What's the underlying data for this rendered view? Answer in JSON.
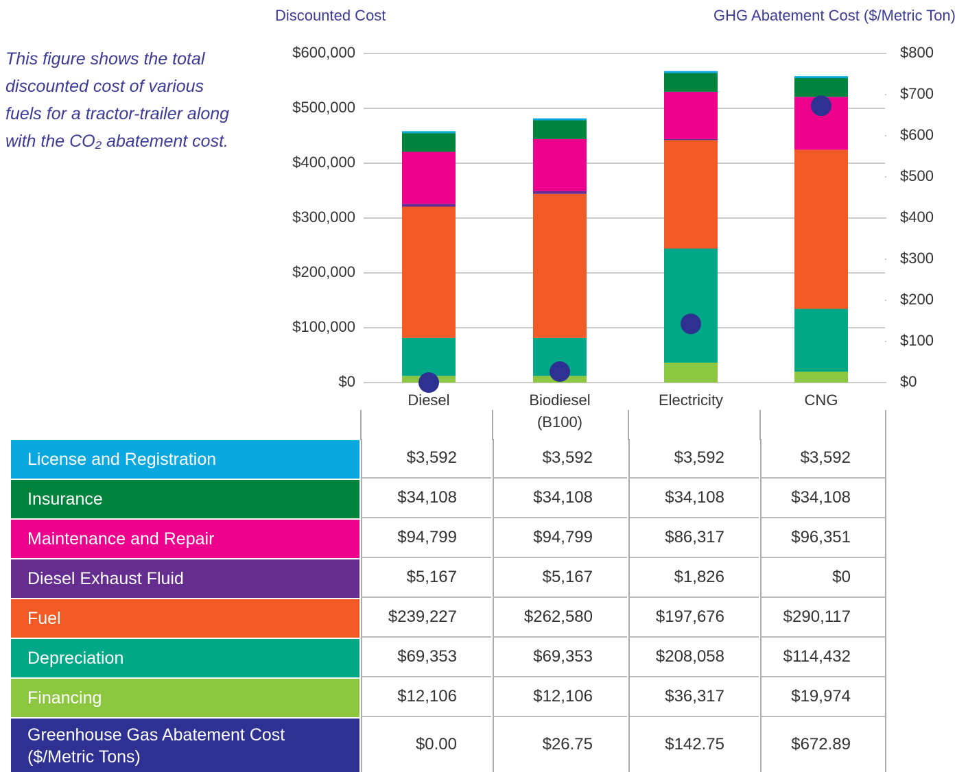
{
  "chart_data": {
    "type": "bar",
    "stacked": true,
    "annotation": "This figure shows the total discounted cost of various fuels for a tractor-trailer along with the CO₂ abatement cost.",
    "y_label": "Discounted Cost",
    "y2_label": "GHG Abatement Cost ($/Metric Ton)",
    "categories": [
      "Diesel",
      "Biodiesel (B100)",
      "Electricity",
      "CNG"
    ],
    "ylim": [
      0,
      600000
    ],
    "yticks": [
      {
        "value": 0,
        "label": "$0"
      },
      {
        "value": 100000,
        "label": "$100,000"
      },
      {
        "value": 200000,
        "label": "$200,000"
      },
      {
        "value": 300000,
        "label": "$300,000"
      },
      {
        "value": 400000,
        "label": "$400,000"
      },
      {
        "value": 500000,
        "label": "$500,000"
      },
      {
        "value": 600000,
        "label": "$600,000"
      }
    ],
    "y2lim": [
      0,
      800
    ],
    "y2ticks": [
      {
        "value": 0,
        "label": "$0"
      },
      {
        "value": 100,
        "label": "$100"
      },
      {
        "value": 200,
        "label": "$200"
      },
      {
        "value": 300,
        "label": "$300"
      },
      {
        "value": 400,
        "label": "$400"
      },
      {
        "value": 500,
        "label": "$500"
      },
      {
        "value": 600,
        "label": "$600"
      },
      {
        "value": 700,
        "label": "$700"
      },
      {
        "value": 800,
        "label": "$800"
      }
    ],
    "grid": true,
    "series": [
      {
        "name": "License and Registration",
        "color": "#0aa8e0",
        "values": [
          3592,
          3592,
          3592,
          3592
        ],
        "value_labels": [
          "$3,592",
          "$3,592",
          "$3,592",
          "$3,592"
        ]
      },
      {
        "name": "Insurance",
        "color": "#00843d",
        "values": [
          34108,
          34108,
          34108,
          34108
        ],
        "value_labels": [
          "$34,108",
          "$34,108",
          "$34,108",
          "$34,108"
        ]
      },
      {
        "name": "Maintenance and Repair",
        "color": "#ec008c",
        "values": [
          94799,
          94799,
          86317,
          96351
        ],
        "value_labels": [
          "$94,799",
          "$94,799",
          "$86,317",
          "$96,351"
        ]
      },
      {
        "name": "Diesel Exhaust Fluid",
        "color": "#662d91",
        "values": [
          5167,
          5167,
          1826,
          0
        ],
        "value_labels": [
          "$5,167",
          "$5,167",
          "$1,826",
          "$0"
        ]
      },
      {
        "name": "Fuel",
        "color": "#f15a24",
        "values": [
          239227,
          262580,
          197676,
          290117
        ],
        "value_labels": [
          "$239,227",
          "$262,580",
          "$197,676",
          "$290,117"
        ]
      },
      {
        "name": "Depreciation",
        "color": "#00a887",
        "values": [
          69353,
          69353,
          208058,
          114432
        ],
        "value_labels": [
          "$69,353",
          "$69,353",
          "$208,058",
          "$114,432"
        ]
      },
      {
        "name": "Financing",
        "color": "#8dc63f",
        "values": [
          12106,
          12106,
          36317,
          19974
        ],
        "value_labels": [
          "$12,106",
          "$12,106",
          "$36,317",
          "$19,974"
        ]
      },
      {
        "name": "Greenhouse Gas Abatement Cost ($/Metric Tons)",
        "color": "#2e3192",
        "axis": "y2",
        "marker": "dot",
        "values": [
          0.0,
          26.75,
          142.75,
          672.89
        ],
        "value_labels": [
          "$0.00",
          "$26.75",
          "$142.75",
          "$672.89"
        ]
      }
    ]
  }
}
